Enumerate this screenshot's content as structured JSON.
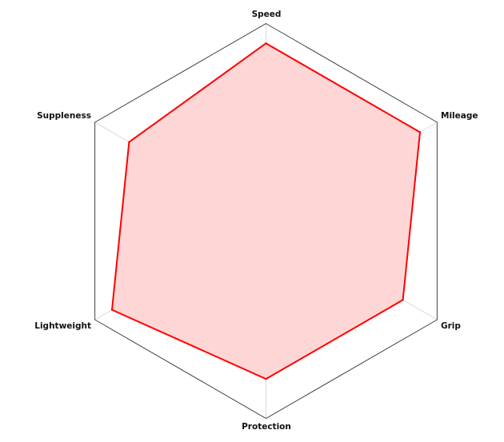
{
  "chart_data": {
    "type": "radar",
    "axes": [
      "Speed",
      "Mileage",
      "Grip",
      "Protection",
      "Lightweight",
      "Suppleness"
    ],
    "range": [
      0,
      100
    ],
    "grid": false,
    "series": [
      {
        "values": [
          90,
          90,
          80,
          80,
          90,
          80
        ],
        "stroke_color": "#ff0000",
        "fill_color": "#ffd6d6"
      }
    ],
    "spoke_color": "#d9d9d9",
    "frame_color": "#444444"
  }
}
